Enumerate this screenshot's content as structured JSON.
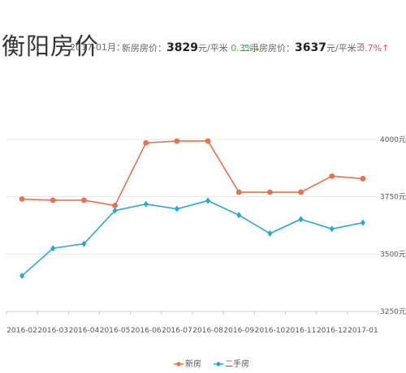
{
  "header": {
    "title": "衡阳房价",
    "period": "2017-01月：",
    "new_label": "新房房价：",
    "new_value": "3829",
    "new_unit": "元/平米",
    "new_change": "0.3%↓",
    "second_label": "二手房房价：",
    "second_value": "3637",
    "second_unit": "元/平米",
    "second_change": "0.7%↑"
  },
  "colors": {
    "new": "#e8704a",
    "second": "#2aa7cf",
    "grid": "#e6e6e6"
  },
  "chart_data": {
    "type": "line",
    "categories": [
      "2016-02",
      "2016-03",
      "2016-04",
      "2016-05",
      "2016-06",
      "2016-07",
      "2016-08",
      "2016-09",
      "2016-10",
      "2016-11",
      "2016-12",
      "2017-01"
    ],
    "series": [
      {
        "name": "新房",
        "values": [
          3740,
          3735,
          3735,
          3712,
          3985,
          3993,
          3993,
          3770,
          3770,
          3770,
          3840,
          3829
        ]
      },
      {
        "name": "二手房",
        "values": [
          3405,
          3525,
          3545,
          3690,
          3718,
          3697,
          3733,
          3670,
          3590,
          3652,
          3610,
          3637
        ]
      }
    ],
    "yticks": [
      "3250元",
      "3500元",
      "3750元",
      "4000元"
    ],
    "ytick_values": [
      3250,
      3500,
      3750,
      4000
    ],
    "ylim": [
      3250,
      4000
    ],
    "grid": true,
    "legend": "bottom-center"
  }
}
